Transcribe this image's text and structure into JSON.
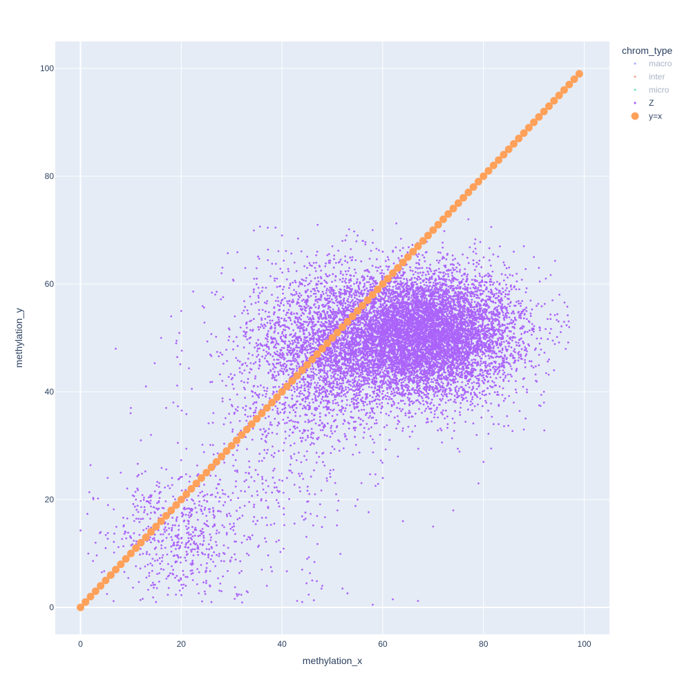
{
  "chart_data": {
    "type": "scatter",
    "xlabel": "methylation_x",
    "ylabel": "methylation_y",
    "xlim": [
      -5,
      105
    ],
    "ylim": [
      -5,
      105
    ],
    "x_ticks": [
      0,
      20,
      40,
      60,
      80,
      100
    ],
    "y_ticks": [
      0,
      20,
      40,
      60,
      80,
      100
    ],
    "grid": true,
    "legend_position": "top-right",
    "legend_title": "chrom_type",
    "colors": {
      "plot_bg": "#E5ECF6",
      "grid": "#ffffff",
      "text": "#2a3f5f",
      "legend_hidden_text": "#a9b3c5",
      "macro": "#636efa",
      "inter": "#EF553B",
      "micro": "#00cc96",
      "Z": "#ab63fa",
      "y_equals_x": "#FFA15A"
    },
    "series": [
      {
        "name": "macro",
        "visible": "legendonly",
        "points": []
      },
      {
        "name": "inter",
        "visible": "legendonly",
        "points": []
      },
      {
        "name": "micro",
        "visible": "legendonly",
        "points": []
      },
      {
        "name": "Z",
        "visible": true,
        "marker_size": "small",
        "clusters": [
          {
            "cx": 65,
            "cy": 50,
            "sx": 10,
            "sy": 6,
            "n": 7000
          },
          {
            "cx": 72,
            "cy": 52,
            "sx": 8,
            "sy": 5,
            "n": 2200
          },
          {
            "cx": 48,
            "cy": 47,
            "sx": 7,
            "sy": 8,
            "n": 1500
          },
          {
            "cx": 38,
            "cy": 35,
            "sx": 8,
            "sy": 14,
            "n": 500
          },
          {
            "cx": 20,
            "cy": 14,
            "sx": 7,
            "sy": 6,
            "n": 600
          }
        ],
        "points": [
          [
            40,
            69
          ],
          [
            58,
            70
          ],
          [
            77,
            72
          ],
          [
            55,
            69
          ],
          [
            47,
            66
          ],
          [
            50,
            67
          ],
          [
            52,
            68
          ],
          [
            7,
            48
          ],
          [
            18,
            54
          ],
          [
            20,
            55
          ],
          [
            16,
            50
          ],
          [
            19,
            49
          ],
          [
            28,
            62
          ],
          [
            35,
            61
          ],
          [
            10,
            37
          ],
          [
            13,
            41
          ],
          [
            17,
            37
          ],
          [
            15,
            1
          ],
          [
            58,
            0.5
          ],
          [
            62,
            1.5
          ],
          [
            67,
            1.2
          ],
          [
            43,
            1.2
          ],
          [
            44,
            1
          ],
          [
            48,
            4
          ],
          [
            52,
            3.5
          ],
          [
            53,
            2.6
          ],
          [
            70,
            15
          ],
          [
            74,
            18
          ],
          [
            64,
            16
          ],
          [
            92,
            40
          ],
          [
            94,
            44
          ],
          [
            96,
            53
          ],
          [
            97,
            52
          ],
          [
            93,
            46
          ],
          [
            92,
            38
          ],
          [
            88,
            33
          ],
          [
            86,
            38
          ],
          [
            80,
            27
          ],
          [
            44,
            7
          ],
          [
            45,
            9
          ],
          [
            46,
            5
          ],
          [
            37,
            4
          ],
          [
            36,
            7
          ],
          [
            33,
            3
          ],
          [
            31,
            2.5
          ],
          [
            26,
            1
          ],
          [
            28,
            3
          ],
          [
            5,
            11
          ],
          [
            3,
            12
          ],
          [
            9,
            9
          ],
          [
            8,
            25
          ],
          [
            11,
            20
          ],
          [
            12,
            31
          ],
          [
            14,
            32
          ],
          [
            42,
            25
          ],
          [
            41,
            24
          ],
          [
            51,
            18
          ],
          [
            55,
            20
          ],
          [
            60,
            24
          ],
          [
            63,
            28
          ],
          [
            79,
            23
          ],
          [
            82,
            34
          ],
          [
            83,
            34
          ],
          [
            85,
            42
          ],
          [
            90,
            65
          ],
          [
            91,
            63
          ],
          [
            88,
            67
          ],
          [
            86,
            66
          ],
          [
            84,
            64
          ],
          [
            78,
            66
          ],
          [
            60,
            66
          ],
          [
            61,
            65
          ],
          [
            53,
            64
          ],
          [
            56,
            68
          ],
          [
            45,
            63
          ],
          [
            39,
            61
          ],
          [
            38,
            58
          ]
        ]
      },
      {
        "name": "y=x",
        "visible": true,
        "marker_size": "large",
        "x": [
          0,
          1,
          2,
          3,
          4,
          5,
          6,
          7,
          8,
          9,
          10,
          11,
          12,
          13,
          14,
          15,
          16,
          17,
          18,
          19,
          20,
          21,
          22,
          23,
          24,
          25,
          26,
          27,
          28,
          29,
          30,
          31,
          32,
          33,
          34,
          35,
          36,
          37,
          38,
          39,
          40,
          41,
          42,
          43,
          44,
          45,
          46,
          47,
          48,
          49,
          50,
          51,
          52,
          53,
          54,
          55,
          56,
          57,
          58,
          59,
          60,
          61,
          62,
          63,
          64,
          65,
          66,
          67,
          68,
          69,
          70,
          71,
          72,
          73,
          74,
          75,
          76,
          77,
          78,
          79,
          80,
          81,
          82,
          83,
          84,
          85,
          86,
          87,
          88,
          89,
          90,
          91,
          92,
          93,
          94,
          95,
          96,
          97,
          98,
          99
        ],
        "y": [
          0,
          1,
          2,
          3,
          4,
          5,
          6,
          7,
          8,
          9,
          10,
          11,
          12,
          13,
          14,
          15,
          16,
          17,
          18,
          19,
          20,
          21,
          22,
          23,
          24,
          25,
          26,
          27,
          28,
          29,
          30,
          31,
          32,
          33,
          34,
          35,
          36,
          37,
          38,
          39,
          40,
          41,
          42,
          43,
          44,
          45,
          46,
          47,
          48,
          49,
          50,
          51,
          52,
          53,
          54,
          55,
          56,
          57,
          58,
          59,
          60,
          61,
          62,
          63,
          64,
          65,
          66,
          67,
          68,
          69,
          70,
          71,
          72,
          73,
          74,
          75,
          76,
          77,
          78,
          79,
          80,
          81,
          82,
          83,
          84,
          85,
          86,
          87,
          88,
          89,
          90,
          91,
          92,
          93,
          94,
          95,
          96,
          97,
          98,
          99
        ]
      }
    ]
  }
}
